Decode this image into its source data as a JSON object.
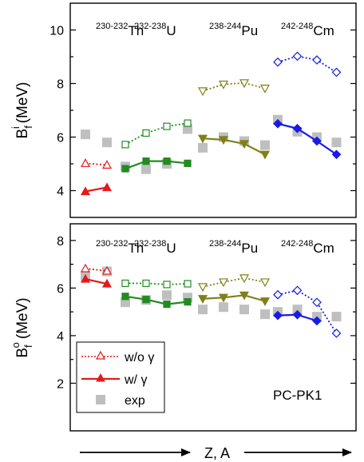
{
  "chart_data": [
    {
      "type": "line",
      "ylabel": {
        "base": "B",
        "sub": "f",
        "sup": "i",
        "unit": "(MeV)"
      },
      "ylim": [
        3,
        11
      ],
      "yticks": [
        4,
        6,
        8,
        10
      ],
      "group_labels": [
        {
          "sup": "230-232",
          "name": "Th"
        },
        {
          "sup": "232-238",
          "name": "U"
        },
        {
          "sup": "238-244",
          "name": "Pu"
        },
        {
          "sup": "242-248",
          "name": "Cm"
        }
      ],
      "groups": [
        {
          "element": "Th",
          "x": [
            0,
            1
          ],
          "wo_gamma": [
            5.02,
            4.96
          ],
          "w_gamma": [
            3.97,
            4.12
          ],
          "exp": [
            6.1,
            5.8
          ]
        },
        {
          "element": "U",
          "x": [
            0,
            1,
            2,
            3
          ],
          "wo_gamma": [
            5.72,
            6.15,
            6.4,
            6.52
          ],
          "w_gamma": [
            4.82,
            5.1,
            5.1,
            5.02
          ],
          "exp": [
            4.9,
            4.8,
            5.0,
            6.3
          ]
        },
        {
          "element": "Pu",
          "x": [
            0,
            1,
            2,
            3
          ],
          "wo_gamma": [
            7.72,
            7.97,
            8.02,
            7.82
          ],
          "w_gamma": [
            5.95,
            5.9,
            5.75,
            5.35
          ],
          "exp": [
            5.6,
            6.0,
            5.85,
            5.7
          ]
        },
        {
          "element": "Cm",
          "x": [
            0,
            1,
            2,
            3
          ],
          "wo_gamma": [
            8.8,
            9.02,
            8.88,
            8.42
          ],
          "w_gamma": [
            6.5,
            6.32,
            5.85,
            5.35
          ],
          "exp": [
            6.65,
            6.2,
            6.0,
            5.8
          ]
        }
      ]
    },
    {
      "type": "line",
      "ylabel": {
        "base": "B",
        "sub": "f",
        "sup": "o",
        "unit": "(MeV)"
      },
      "ylim": [
        0,
        8.7
      ],
      "yticks": [
        2,
        4,
        6,
        8
      ],
      "group_labels": [
        {
          "sup": "230-232",
          "name": "Th"
        },
        {
          "sup": "232-238",
          "name": "U"
        },
        {
          "sup": "238-244",
          "name": "Pu"
        },
        {
          "sup": "242-248",
          "name": "Cm"
        }
      ],
      "groups": [
        {
          "element": "Th",
          "x": [
            0,
            1
          ],
          "wo_gamma": [
            6.82,
            6.72
          ],
          "w_gamma": [
            6.38,
            6.18
          ],
          "exp": [
            6.5,
            6.7
          ]
        },
        {
          "element": "U",
          "x": [
            0,
            1,
            2,
            3
          ],
          "wo_gamma": [
            6.2,
            6.2,
            6.15,
            6.18
          ],
          "w_gamma": [
            5.65,
            5.52,
            5.32,
            5.42
          ],
          "exp": [
            5.4,
            5.5,
            5.7,
            5.6
          ]
        },
        {
          "element": "Pu",
          "x": [
            0,
            1,
            2,
            3
          ],
          "wo_gamma": [
            6.05,
            6.25,
            6.42,
            6.25
          ],
          "w_gamma": [
            5.55,
            5.6,
            5.7,
            5.45
          ],
          "exp": [
            5.1,
            5.2,
            5.1,
            4.9
          ]
        },
        {
          "element": "Cm",
          "x": [
            0,
            1,
            2,
            3
          ],
          "wo_gamma": [
            5.72,
            5.9,
            5.4,
            4.1
          ],
          "w_gamma": [
            4.85,
            4.88,
            4.62,
            null
          ],
          "exp": [
            5.0,
            5.1,
            4.8,
            4.8
          ]
        }
      ]
    }
  ],
  "series_styles": {
    "Th": {
      "color": "#e31a1c",
      "marker": "triangle-up"
    },
    "U": {
      "color": "#228b22",
      "marker": "square"
    },
    "Pu": {
      "color": "#808019",
      "marker": "triangle-down"
    },
    "Cm": {
      "color": "#1a1ae6",
      "marker": "diamond"
    },
    "exp": {
      "color": "#bfbfbf",
      "marker": "square"
    }
  },
  "legend": {
    "placement": "bottom-left of lower panel",
    "entries": [
      {
        "label": "w/o γ",
        "style": "dotted-open-triangle"
      },
      {
        "label": "w/ γ",
        "style": "solid-filled-triangle"
      },
      {
        "label": "exp",
        "style": "gray-square"
      }
    ]
  },
  "model_label": "PC-PK1",
  "xlabel": "Z, A"
}
